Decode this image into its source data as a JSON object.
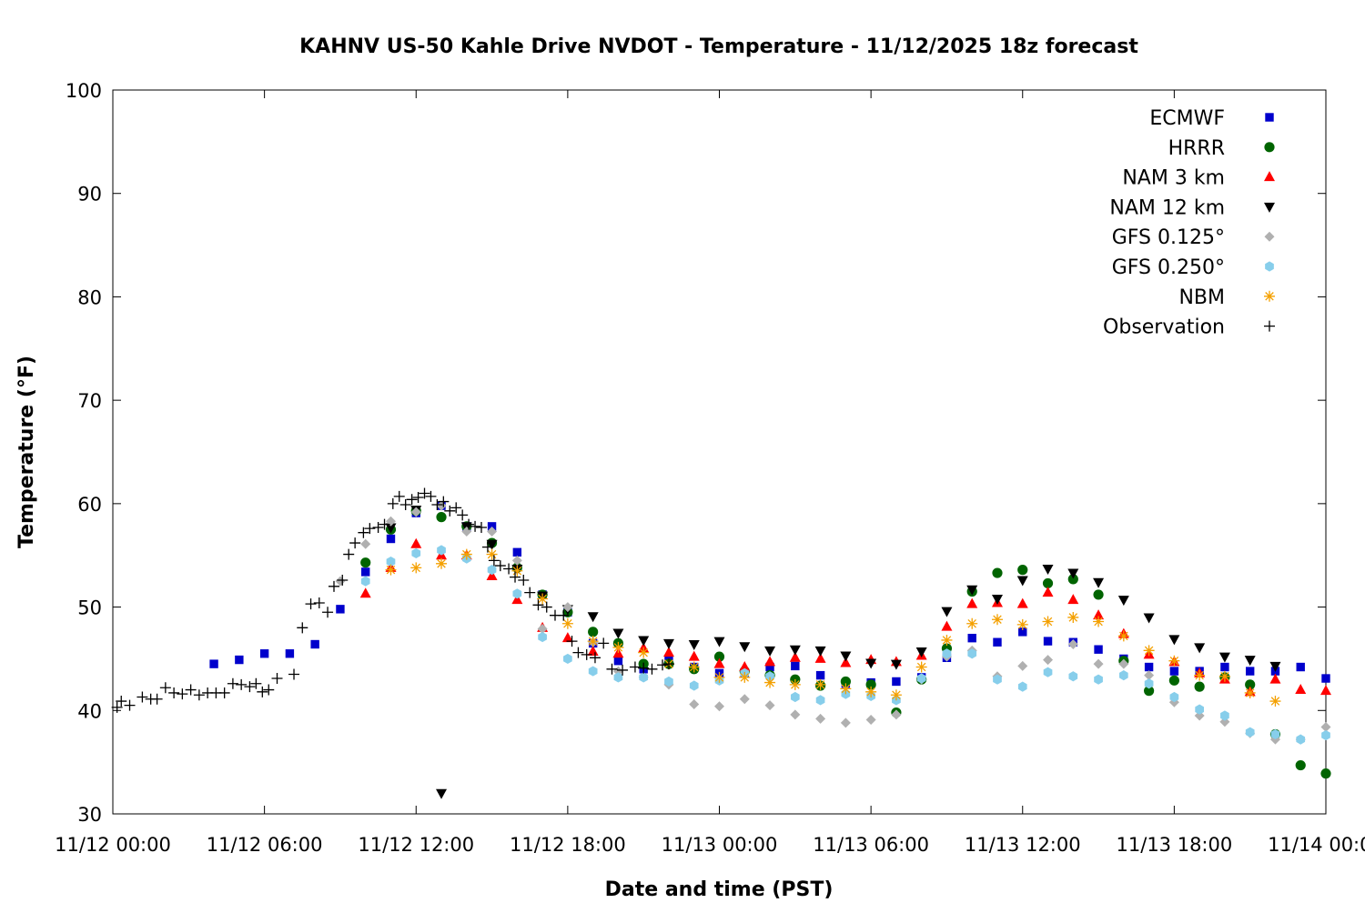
{
  "chart_data": {
    "type": "scatter",
    "title": "KAHNV US-50 Kahle Drive NVDOT - Temperature - 11/12/2025 18z forecast",
    "xlabel": "Date and time (PST)",
    "ylabel": "Temperature (°F)",
    "xlim": [
      "11/12 00:00",
      "11/14 00:00"
    ],
    "ylim": [
      30,
      100
    ],
    "x_ticks": [
      "11/12 00:00",
      "11/12 06:00",
      "11/12 12:00",
      "11/12 18:00",
      "11/13 00:00",
      "11/13 06:00",
      "11/13 12:00",
      "11/13 18:00",
      "11/14 00:00"
    ],
    "y_ticks": [
      "30",
      "40",
      "50",
      "60",
      "70",
      "80",
      "90",
      "100"
    ],
    "grid": false,
    "legend_position": "top-right",
    "series": [
      {
        "name": "ECMWF",
        "marker": "square",
        "color": "#0000cc",
        "x": [
          "11/12 04:00",
          "11/12 05:00",
          "11/12 06:00",
          "11/12 07:00",
          "11/12 08:00",
          "11/12 09:00",
          "11/12 10:00",
          "11/12 11:00",
          "11/12 12:00",
          "11/12 13:00",
          "11/12 14:00",
          "11/12 15:00",
          "11/12 16:00",
          "11/12 17:00",
          "11/12 18:00",
          "11/12 19:00",
          "11/12 20:00",
          "11/12 21:00",
          "11/12 22:00",
          "11/12 23:00",
          "11/13 00:00",
          "11/13 01:00",
          "11/13 02:00",
          "11/13 03:00",
          "11/13 04:00",
          "11/13 05:00",
          "11/13 06:00",
          "11/13 07:00",
          "11/13 08:00",
          "11/13 09:00",
          "11/13 10:00",
          "11/13 11:00",
          "11/13 12:00",
          "11/13 13:00",
          "11/13 14:00",
          "11/13 15:00",
          "11/13 16:00",
          "11/13 17:00",
          "11/13 18:00",
          "11/13 19:00",
          "11/13 20:00",
          "11/13 21:00",
          "11/13 22:00",
          "11/13 23:00",
          "11/14 00:00"
        ],
        "y": [
          44.5,
          44.9,
          45.5,
          45.5,
          46.4,
          49.8,
          53.4,
          56.6,
          59.1,
          59.8,
          57.8,
          57.8,
          55.3,
          51.2,
          49.5,
          46.5,
          44.8,
          44.0,
          44.8,
          44.2,
          43.6,
          43.6,
          44.2,
          44.3,
          43.4,
          42.6,
          42.7,
          42.8,
          43.2,
          45.1,
          47.0,
          46.6,
          47.6,
          46.7,
          46.6,
          45.9,
          45.0,
          44.2,
          43.8,
          43.8,
          44.2,
          43.8,
          43.8,
          44.2,
          43.1
        ]
      },
      {
        "name": "HRRR",
        "marker": "circle",
        "color": "#006400",
        "x": [
          "11/12 10:00",
          "11/12 11:00",
          "11/12 12:00",
          "11/12 13:00",
          "11/12 14:00",
          "11/12 15:00",
          "11/12 16:00",
          "11/12 17:00",
          "11/12 18:00",
          "11/12 19:00",
          "11/12 20:00",
          "11/12 21:00",
          "11/12 22:00",
          "11/12 23:00",
          "11/13 00:00",
          "11/13 01:00",
          "11/13 02:00",
          "11/13 03:00",
          "11/13 04:00",
          "11/13 05:00",
          "11/13 06:00",
          "11/13 07:00",
          "11/13 08:00",
          "11/13 09:00",
          "11/13 10:00",
          "11/13 11:00",
          "11/13 12:00",
          "11/13 13:00",
          "11/13 14:00",
          "11/13 15:00",
          "11/13 16:00",
          "11/13 17:00",
          "11/13 18:00",
          "11/13 19:00",
          "11/13 20:00",
          "11/13 21:00",
          "11/13 22:00",
          "11/13 23:00",
          "11/14 00:00"
        ],
        "y": [
          54.3,
          57.5,
          59.3,
          58.7,
          57.8,
          56.2,
          53.8,
          51.2,
          49.5,
          47.6,
          46.5,
          44.5,
          44.5,
          44.0,
          45.2,
          43.8,
          43.4,
          43.0,
          42.4,
          42.8,
          42.5,
          39.8,
          43.0,
          46.0,
          51.5,
          53.3,
          53.6,
          52.3,
          52.7,
          51.2,
          44.8,
          41.9,
          42.9,
          42.3,
          43.2,
          42.5,
          37.7,
          34.7,
          33.9
        ]
      },
      {
        "name": "NAM 3 km",
        "marker": "triangle-up",
        "color": "#ff0000",
        "x": [
          "11/12 10:00",
          "11/12 11:00",
          "11/12 12:00",
          "11/12 13:00",
          "11/12 14:00",
          "11/12 15:00",
          "11/12 16:00",
          "11/12 17:00",
          "11/12 18:00",
          "11/12 19:00",
          "11/12 20:00",
          "11/12 21:00",
          "11/12 22:00",
          "11/12 23:00",
          "11/13 00:00",
          "11/13 01:00",
          "11/13 02:00",
          "11/13 03:00",
          "11/13 04:00",
          "11/13 05:00",
          "11/13 06:00",
          "11/13 07:00",
          "11/13 08:00",
          "11/13 09:00",
          "11/13 10:00",
          "11/13 11:00",
          "11/13 12:00",
          "11/13 13:00",
          "11/13 14:00",
          "11/13 15:00",
          "11/13 16:00",
          "11/13 17:00",
          "11/13 18:00",
          "11/13 19:00",
          "11/13 20:00",
          "11/13 21:00",
          "11/13 22:00",
          "11/13 23:00",
          "11/14 00:00"
        ],
        "y": [
          51.3,
          53.8,
          56.1,
          55.0,
          55.0,
          53.0,
          50.7,
          48.0,
          47.0,
          45.7,
          45.5,
          46.0,
          45.6,
          45.2,
          44.5,
          44.2,
          44.7,
          45.1,
          45.0,
          44.6,
          44.9,
          44.7,
          45.3,
          48.1,
          50.3,
          50.4,
          50.3,
          51.4,
          50.7,
          49.2,
          47.4,
          45.4,
          44.7,
          43.6,
          43.0,
          41.8,
          43.0,
          42.0,
          41.9
        ]
      },
      {
        "name": "NAM 12 km",
        "marker": "triangle-down",
        "color": "#000000",
        "x": [
          "11/12 11:00",
          "11/12 12:00",
          "11/12 13:00",
          "11/12 14:00",
          "11/12 15:00",
          "11/12 16:00",
          "11/12 17:00",
          "11/12 18:00",
          "11/12 19:00",
          "11/12 20:00",
          "11/12 21:00",
          "11/12 22:00",
          "11/12 23:00",
          "11/13 00:00",
          "11/13 01:00",
          "11/13 02:00",
          "11/13 03:00",
          "11/13 04:00",
          "11/13 05:00",
          "11/13 06:00",
          "11/13 07:00",
          "11/13 08:00",
          "11/13 09:00",
          "11/13 10:00",
          "11/13 11:00",
          "11/13 12:00",
          "11/13 13:00",
          "11/13 14:00",
          "11/13 15:00",
          "11/13 16:00",
          "11/13 17:00",
          "11/13 18:00",
          "11/13 19:00",
          "11/13 20:00",
          "11/13 21:00",
          "11/13 22:00"
        ],
        "y": [
          57.7,
          59.4,
          32.0,
          57.8,
          56.1,
          53.7,
          51.1,
          49.8,
          49.1,
          47.5,
          46.8,
          46.5,
          46.4,
          46.7,
          46.2,
          45.8,
          45.9,
          45.8,
          45.3,
          44.6,
          44.5,
          45.7,
          49.6,
          51.7,
          50.8,
          52.6,
          53.7,
          53.3,
          52.4,
          50.7,
          49.0,
          46.9,
          46.1,
          45.2,
          44.9,
          44.3
        ]
      },
      {
        "name": "GFS 0.125°",
        "marker": "diamond",
        "color": "#b0b0b0",
        "x": [
          "11/12 09:00",
          "11/12 10:00",
          "11/12 11:00",
          "11/12 12:00",
          "11/12 13:00",
          "11/12 14:00",
          "11/12 15:00",
          "11/12 16:00",
          "11/12 17:00",
          "11/12 18:00",
          "11/12 19:00",
          "11/12 20:00",
          "11/12 21:00",
          "11/12 22:00",
          "11/12 23:00",
          "11/13 00:00",
          "11/13 01:00",
          "11/13 02:00",
          "11/13 03:00",
          "11/13 04:00",
          "11/13 05:00",
          "11/13 06:00",
          "11/13 07:00",
          "11/13 08:00",
          "11/13 09:00",
          "11/13 10:00",
          "11/13 11:00",
          "11/13 12:00",
          "11/13 13:00",
          "11/13 14:00",
          "11/13 15:00",
          "11/13 16:00",
          "11/13 17:00",
          "11/13 18:00",
          "11/13 19:00",
          "11/13 20:00",
          "11/13 21:00",
          "11/13 22:00",
          "11/13 23:00",
          "11/14 00:00"
        ],
        "y": [
          52.5,
          56.1,
          58.3,
          59.2,
          59.8,
          57.3,
          57.3,
          54.5,
          47.9,
          50.0,
          46.6,
          43.8,
          43.2,
          42.5,
          40.6,
          40.4,
          41.1,
          40.5,
          39.6,
          39.2,
          38.8,
          39.1,
          39.6,
          43.0,
          45.2,
          45.8,
          43.3,
          44.3,
          44.9,
          46.4,
          44.5,
          44.5,
          43.4,
          40.8,
          39.5,
          38.9,
          37.8,
          37.2,
          37.2,
          38.4
        ]
      },
      {
        "name": "GFS 0.250°",
        "marker": "hexagon",
        "color": "#87ceeb",
        "x": [
          "11/12 10:00",
          "11/12 11:00",
          "11/12 12:00",
          "11/12 13:00",
          "11/12 14:00",
          "11/12 15:00",
          "11/12 16:00",
          "11/12 17:00",
          "11/12 18:00",
          "11/12 19:00",
          "11/12 20:00",
          "11/12 21:00",
          "11/12 22:00",
          "11/12 23:00",
          "11/13 00:00",
          "11/13 01:00",
          "11/13 02:00",
          "11/13 03:00",
          "11/13 04:00",
          "11/13 05:00",
          "11/13 06:00",
          "11/13 07:00",
          "11/13 08:00",
          "11/13 09:00",
          "11/13 10:00",
          "11/13 11:00",
          "11/13 12:00",
          "11/13 13:00",
          "11/13 14:00",
          "11/13 15:00",
          "11/13 16:00",
          "11/13 17:00",
          "11/13 18:00",
          "11/13 19:00",
          "11/13 20:00",
          "11/13 21:00",
          "11/13 22:00",
          "11/13 23:00",
          "11/14 00:00"
        ],
        "y": [
          52.5,
          54.4,
          55.2,
          55.5,
          54.7,
          53.6,
          51.3,
          47.1,
          45.0,
          43.8,
          43.2,
          43.2,
          42.8,
          42.4,
          42.9,
          43.6,
          43.3,
          41.3,
          41.0,
          41.6,
          41.4,
          41.0,
          43.1,
          45.5,
          45.5,
          43.0,
          42.3,
          43.7,
          43.3,
          43.0,
          43.4,
          42.6,
          41.3,
          40.1,
          39.5,
          37.9,
          37.7,
          37.2,
          37.6
        ]
      },
      {
        "name": "NBM",
        "marker": "asterisk",
        "color": "#f4a000",
        "x": [
          "11/12 11:00",
          "11/12 12:00",
          "11/12 13:00",
          "11/12 14:00",
          "11/12 15:00",
          "11/12 16:00",
          "11/12 17:00",
          "11/12 18:00",
          "11/12 19:00",
          "11/12 20:00",
          "11/12 21:00",
          "11/12 22:00",
          "11/12 23:00",
          "11/13 00:00",
          "11/13 01:00",
          "11/13 02:00",
          "11/13 03:00",
          "11/13 04:00",
          "11/13 05:00",
          "11/13 06:00",
          "11/13 07:00",
          "11/13 08:00",
          "11/13 09:00",
          "11/13 10:00",
          "11/13 11:00",
          "11/13 12:00",
          "11/13 13:00",
          "11/13 14:00",
          "11/13 15:00",
          "11/13 16:00",
          "11/13 17:00",
          "11/13 18:00",
          "11/13 19:00",
          "11/13 20:00",
          "11/13 21:00",
          "11/13 22:00"
        ],
        "y": [
          53.6,
          53.8,
          54.2,
          55.1,
          55.1,
          53.5,
          50.8,
          48.4,
          46.7,
          46.1,
          45.6,
          44.5,
          44.2,
          43.2,
          43.2,
          42.7,
          42.5,
          42.5,
          42.1,
          41.8,
          41.5,
          44.2,
          46.8,
          48.4,
          48.8,
          48.3,
          48.6,
          49.0,
          48.6,
          47.2,
          45.8,
          44.8,
          43.4,
          43.3,
          41.7,
          40.9
        ]
      },
      {
        "name": "Observation",
        "marker": "plus",
        "color": "#000000",
        "x": [
          "11/12 00:10",
          "11/12 00:20",
          "11/12 00:40",
          "11/12 01:10",
          "11/12 01:30",
          "11/12 01:45",
          "11/12 02:05",
          "11/12 02:25",
          "11/12 02:45",
          "11/12 03:05",
          "11/12 03:25",
          "11/12 03:45",
          "11/12 04:05",
          "11/12 04:25",
          "11/12 04:45",
          "11/12 05:05",
          "11/12 05:25",
          "11/12 05:40",
          "11/12 05:55",
          "11/12 06:10",
          "11/12 06:30",
          "11/12 07:10",
          "11/12 07:30",
          "11/12 07:50",
          "11/12 08:10",
          "11/12 08:30",
          "11/12 08:45",
          "11/12 09:05",
          "11/12 09:20",
          "11/12 09:35",
          "11/12 09:55",
          "11/12 10:10",
          "11/12 10:30",
          "11/12 10:45",
          "11/12 11:05",
          "11/12 11:20",
          "11/12 11:35",
          "11/12 11:50",
          "11/12 12:05",
          "11/12 12:20",
          "11/12 12:35",
          "11/12 12:50",
          "11/12 13:05",
          "11/12 13:20",
          "11/12 13:35",
          "11/12 13:50",
          "11/12 14:05",
          "11/12 14:20",
          "11/12 14:35",
          "11/12 14:50",
          "11/12 15:05",
          "11/12 15:20",
          "11/12 15:40",
          "11/12 15:55",
          "11/12 16:15",
          "11/12 16:30",
          "11/12 16:50",
          "11/12 17:10",
          "11/12 17:30",
          "11/12 17:50",
          "11/12 18:10",
          "11/12 18:25",
          "11/12 18:45",
          "11/12 19:05",
          "11/12 19:25",
          "11/12 19:45",
          "11/12 20:10",
          "11/12 20:40",
          "11/12 21:00",
          "11/12 21:20",
          "11/12 21:45",
          "11/12 22:00"
        ],
        "y": [
          40.3,
          40.9,
          40.5,
          41.3,
          41.1,
          41.1,
          42.2,
          41.7,
          41.6,
          42.0,
          41.5,
          41.7,
          41.7,
          41.7,
          42.6,
          42.5,
          42.3,
          42.6,
          41.8,
          42.0,
          43.1,
          43.5,
          48.0,
          50.3,
          50.4,
          49.5,
          52.0,
          52.6,
          55.1,
          56.2,
          57.2,
          57.6,
          57.7,
          58.0,
          60.0,
          60.7,
          59.9,
          60.4,
          60.6,
          61.0,
          60.7,
          59.9,
          60.2,
          59.3,
          59.6,
          58.9,
          58.0,
          57.8,
          57.7,
          55.8,
          54.5,
          54.0,
          53.7,
          52.9,
          52.6,
          51.4,
          50.2,
          50.0,
          49.2,
          49.2,
          46.7,
          45.6,
          45.4,
          45.1,
          46.5,
          44.0,
          43.9,
          44.2,
          44.1,
          44.0,
          44.4,
          44.5
        ]
      }
    ]
  }
}
